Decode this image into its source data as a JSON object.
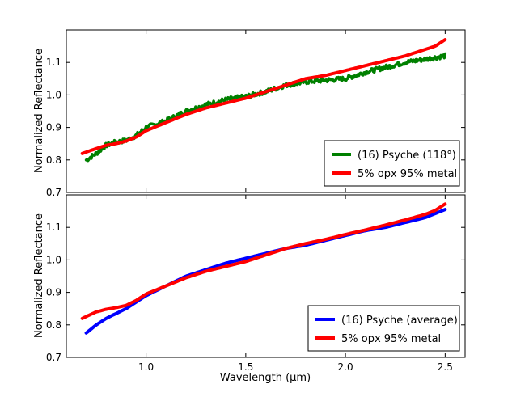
{
  "chart_data": [
    {
      "type": "line",
      "panel": "top",
      "title": "",
      "xlabel": "",
      "ylabel": "Normalized Reflectance",
      "xlim": [
        0.6,
        2.6
      ],
      "ylim": [
        0.7,
        1.2
      ],
      "xticks": [
        1.0,
        1.5,
        2.0,
        2.5
      ],
      "yticks": [
        0.7,
        0.8,
        0.9,
        1.0,
        1.1
      ],
      "xtick_labels": [
        "",
        "",
        "",
        ""
      ],
      "ytick_labels": [
        "0.7",
        "0.8",
        "0.9",
        "1.0",
        "1.1"
      ],
      "legend_position": "lower-right",
      "series": [
        {
          "name": "(16) Psyche (118°)",
          "color": "#008000",
          "noisy": true,
          "x": [
            0.7,
            0.75,
            0.8,
            0.85,
            0.9,
            0.95,
            1.0,
            1.1,
            1.2,
            1.3,
            1.4,
            1.5,
            1.6,
            1.7,
            1.8,
            1.9,
            2.0,
            2.1,
            2.2,
            2.3,
            2.4,
            2.5
          ],
          "y": [
            0.8,
            0.82,
            0.845,
            0.855,
            0.86,
            0.875,
            0.9,
            0.92,
            0.95,
            0.97,
            0.985,
            0.995,
            1.01,
            1.03,
            1.04,
            1.045,
            1.05,
            1.07,
            1.085,
            1.1,
            1.11,
            1.12
          ]
        },
        {
          "name": "5% opx 95% metal",
          "color": "#ff0000",
          "noisy": false,
          "x": [
            0.68,
            0.75,
            0.8,
            0.85,
            0.9,
            0.95,
            1.0,
            1.1,
            1.2,
            1.3,
            1.4,
            1.5,
            1.6,
            1.7,
            1.8,
            1.9,
            2.0,
            2.1,
            2.2,
            2.3,
            2.4,
            2.45,
            2.5
          ],
          "y": [
            0.82,
            0.835,
            0.845,
            0.85,
            0.858,
            0.87,
            0.89,
            0.915,
            0.94,
            0.96,
            0.975,
            0.99,
            1.01,
            1.03,
            1.05,
            1.06,
            1.075,
            1.09,
            1.105,
            1.12,
            1.14,
            1.15,
            1.17
          ]
        }
      ]
    },
    {
      "type": "line",
      "panel": "bottom",
      "title": "",
      "xlabel": "Wavelength (μm)",
      "ylabel": "Normalized Reflectance",
      "xlim": [
        0.6,
        2.6
      ],
      "ylim": [
        0.7,
        1.2
      ],
      "xticks": [
        1.0,
        1.5,
        2.0,
        2.5
      ],
      "yticks": [
        0.7,
        0.8,
        0.9,
        1.0,
        1.1
      ],
      "xtick_labels": [
        "1.0",
        "1.5",
        "2.0",
        "2.5"
      ],
      "ytick_labels": [
        "0.7",
        "0.8",
        "0.9",
        "1.0",
        "1.1"
      ],
      "legend_position": "lower-right",
      "series": [
        {
          "name": "(16) Psyche (average)",
          "color": "#0000ff",
          "noisy": false,
          "x": [
            0.7,
            0.75,
            0.8,
            0.85,
            0.9,
            0.95,
            1.0,
            1.1,
            1.2,
            1.3,
            1.4,
            1.5,
            1.6,
            1.7,
            1.8,
            1.9,
            2.0,
            2.1,
            2.2,
            2.3,
            2.4,
            2.5
          ],
          "y": [
            0.775,
            0.8,
            0.82,
            0.835,
            0.85,
            0.87,
            0.89,
            0.92,
            0.95,
            0.97,
            0.99,
            1.005,
            1.02,
            1.035,
            1.045,
            1.06,
            1.075,
            1.09,
            1.1,
            1.115,
            1.13,
            1.155
          ]
        },
        {
          "name": "5% opx 95% metal",
          "color": "#ff0000",
          "noisy": false,
          "x": [
            0.68,
            0.75,
            0.8,
            0.85,
            0.9,
            0.95,
            1.0,
            1.1,
            1.2,
            1.3,
            1.4,
            1.5,
            1.6,
            1.7,
            1.8,
            1.9,
            2.0,
            2.1,
            2.2,
            2.3,
            2.4,
            2.45,
            2.5
          ],
          "y": [
            0.82,
            0.84,
            0.848,
            0.853,
            0.86,
            0.875,
            0.895,
            0.92,
            0.945,
            0.965,
            0.98,
            0.995,
            1.015,
            1.035,
            1.05,
            1.063,
            1.078,
            1.092,
            1.107,
            1.123,
            1.14,
            1.152,
            1.172
          ]
        }
      ]
    }
  ]
}
